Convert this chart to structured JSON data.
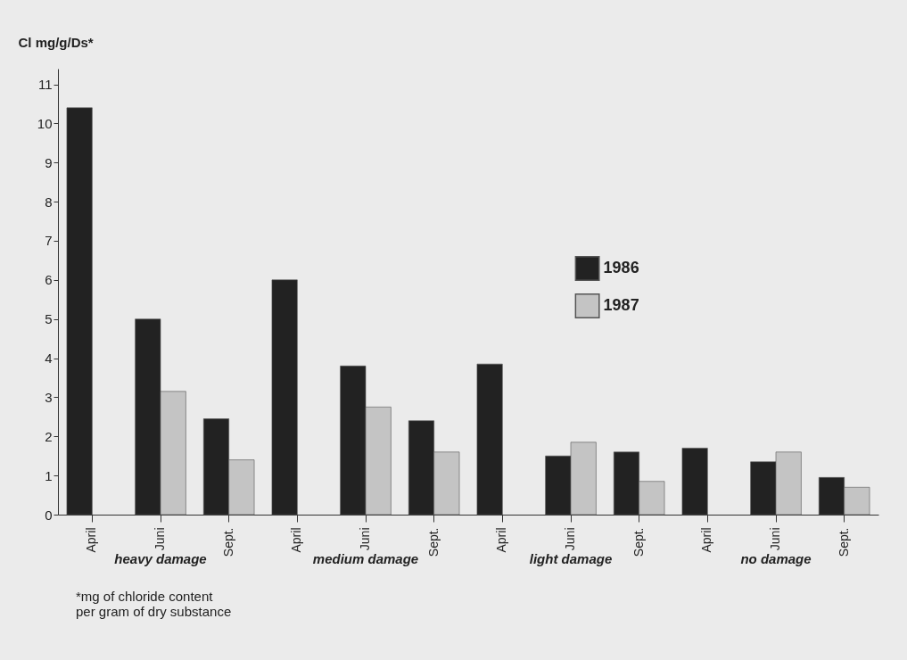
{
  "chart_data": {
    "type": "bar",
    "ylabel": "Cl mg/g/Ds*",
    "categories": [
      "April",
      "Juni",
      "Sept.",
      "April",
      "Juni",
      "Sept.",
      "April",
      "Juni",
      "Sept.",
      "April",
      "Juni",
      "Sept."
    ],
    "series": [
      {
        "name": "1986",
        "color": "#222222",
        "values": [
          10.4,
          5.0,
          2.45,
          6.0,
          3.8,
          2.4,
          3.85,
          1.5,
          1.6,
          1.7,
          1.35,
          0.95
        ]
      },
      {
        "name": "1987",
        "color": "#c4c4c4",
        "values": [
          null,
          3.15,
          1.4,
          null,
          2.75,
          1.6,
          null,
          1.85,
          0.85,
          null,
          1.6,
          0.7
        ]
      }
    ],
    "ylim": [
      0,
      11.4
    ],
    "yticks": [
      0,
      1,
      2,
      3,
      4,
      5,
      6,
      7,
      8,
      9,
      10,
      11
    ],
    "legend": "right",
    "grid": false,
    "annotations": [
      "heavy damage",
      "medium damage",
      "light damage",
      "no damage",
      "*mg of chloride content\n per gram of dry substance"
    ]
  }
}
